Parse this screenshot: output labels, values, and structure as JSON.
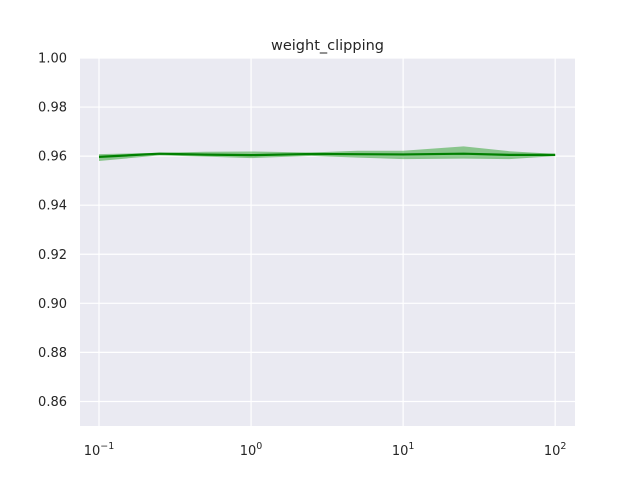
{
  "chart_data": {
    "type": "line",
    "title": "weight_clipping",
    "xlabel": "",
    "ylabel": "",
    "x_scale": "log",
    "xlim": [
      0.075,
      135
    ],
    "ylim": [
      0.85,
      1.0
    ],
    "grid": true,
    "background": "#eaeaf2",
    "grid_color": "#ffffff",
    "x_ticks": [
      {
        "value": 0.1,
        "base": "10",
        "exp": "−1"
      },
      {
        "value": 1,
        "base": "10",
        "exp": "0"
      },
      {
        "value": 10,
        "base": "10",
        "exp": "1"
      },
      {
        "value": 100,
        "base": "10",
        "exp": "2"
      }
    ],
    "y_ticks": [
      {
        "value": 0.86,
        "label": "0.86"
      },
      {
        "value": 0.88,
        "label": "0.88"
      },
      {
        "value": 0.9,
        "label": "0.90"
      },
      {
        "value": 0.92,
        "label": "0.92"
      },
      {
        "value": 0.94,
        "label": "0.94"
      },
      {
        "value": 0.96,
        "label": "0.96"
      },
      {
        "value": 0.98,
        "label": "0.98"
      },
      {
        "value": 1.0,
        "label": "1.00"
      }
    ],
    "series": [
      {
        "color": "#008000",
        "band_color": "#3aa53a",
        "x": [
          0.1,
          0.25,
          0.5,
          1,
          2.5,
          5,
          10,
          25,
          50,
          100
        ],
        "y": [
          0.9597,
          0.961,
          0.9606,
          0.9604,
          0.9609,
          0.9608,
          0.9607,
          0.961,
          0.9605,
          0.9605
        ],
        "y_low": [
          0.958,
          0.9603,
          0.9598,
          0.9592,
          0.9601,
          0.9594,
          0.9588,
          0.959,
          0.9588,
          0.96
        ],
        "y_high": [
          0.9608,
          0.9614,
          0.9618,
          0.9619,
          0.9615,
          0.9622,
          0.9622,
          0.964,
          0.962,
          0.9609
        ]
      }
    ]
  }
}
